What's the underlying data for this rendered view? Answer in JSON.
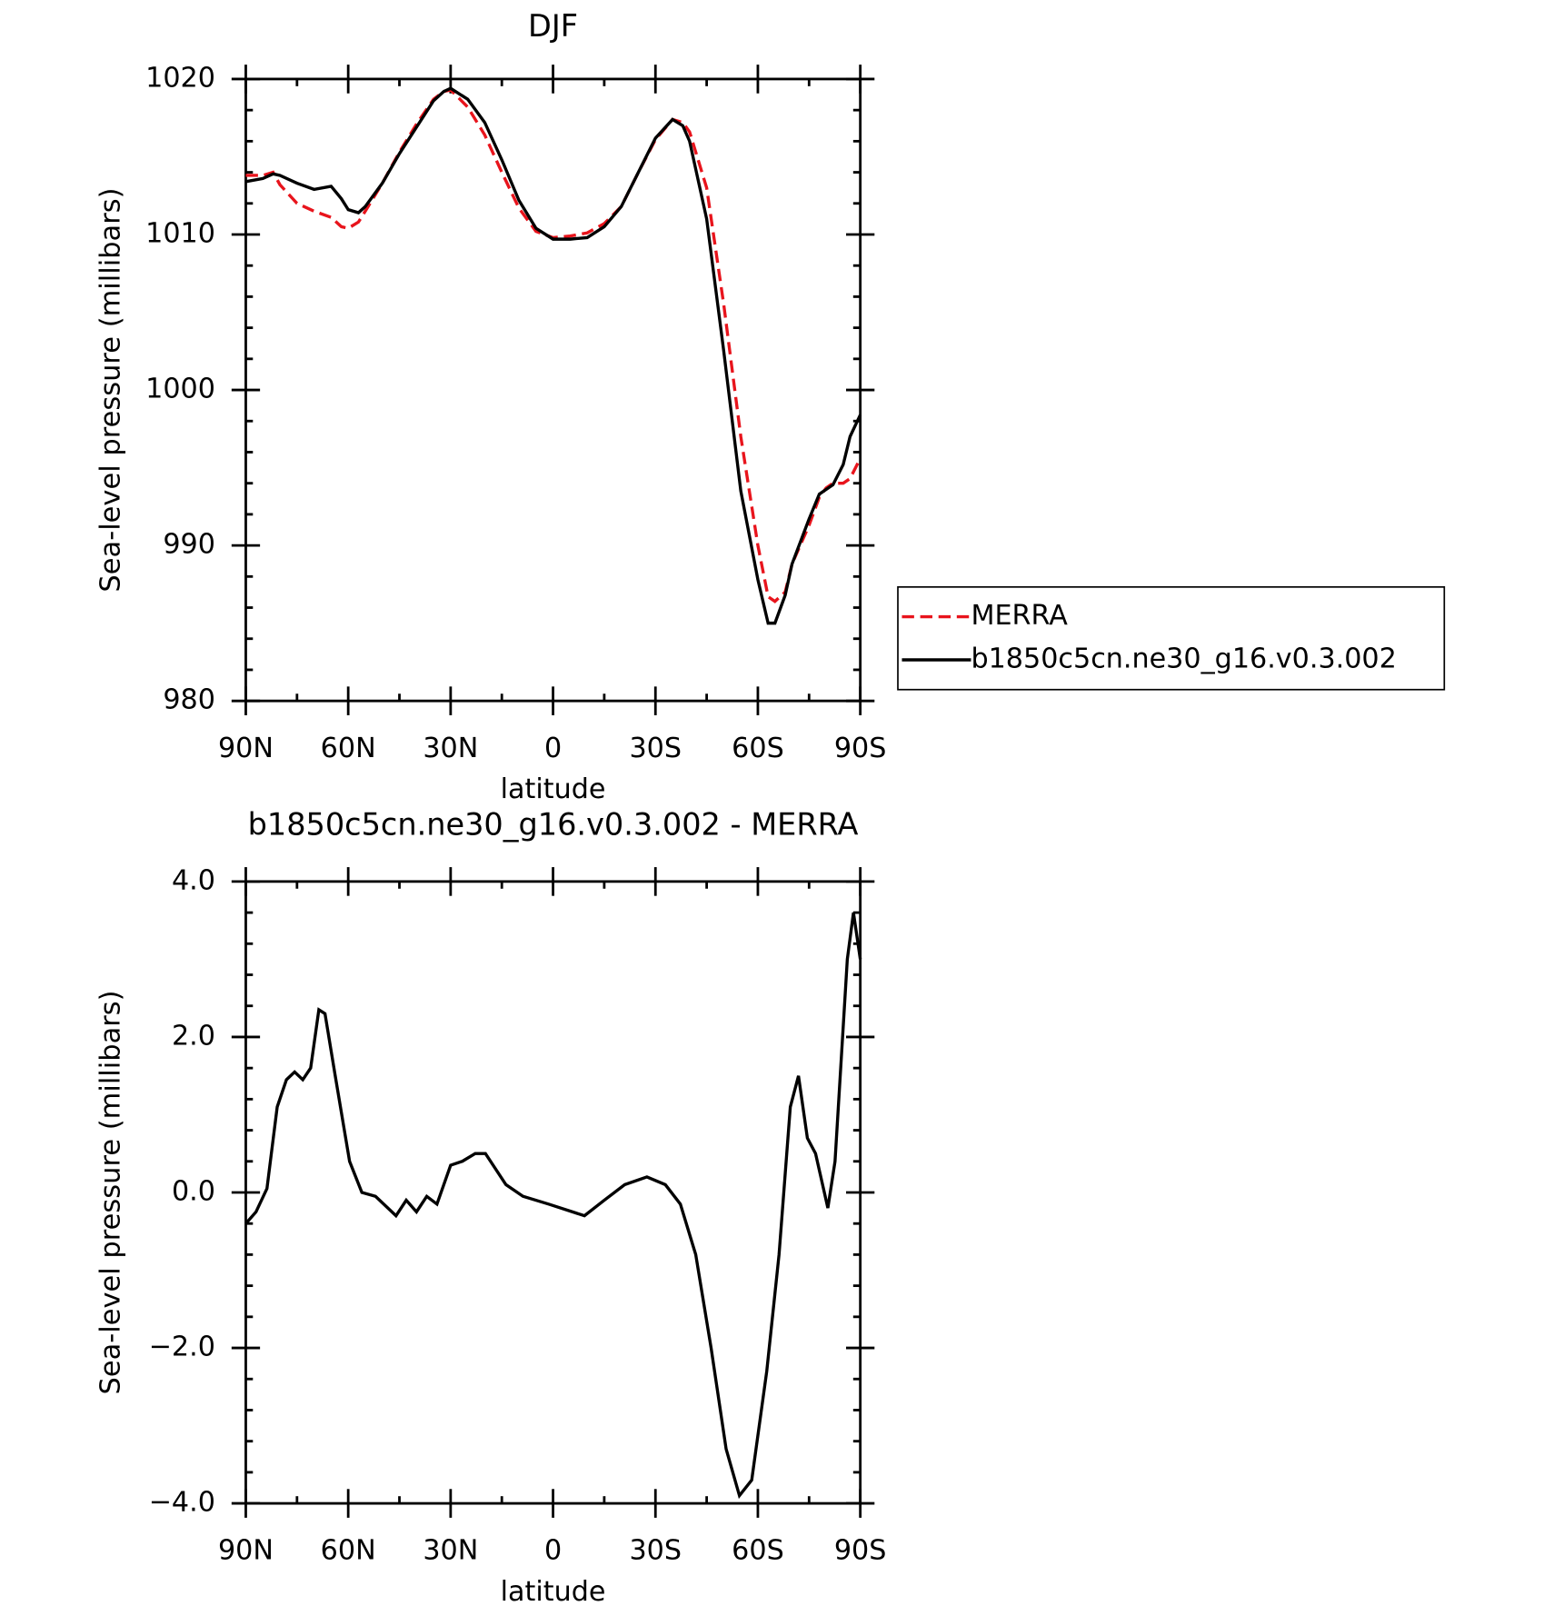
{
  "chart_data": [
    {
      "type": "line",
      "title": "DJF",
      "x_label": "latitude",
      "y_label": "Sea-level pressure (millibars)",
      "xlim": [
        90,
        -90
      ],
      "xticks": [
        {
          "value": 90,
          "label": "90N"
        },
        {
          "value": 60,
          "label": "60N"
        },
        {
          "value": 30,
          "label": "30N"
        },
        0,
        {
          "value": -30,
          "label": "30S"
        },
        {
          "value": -60,
          "label": "60S"
        },
        {
          "value": -90,
          "label": "90S"
        }
      ],
      "ylim": [
        980,
        1020
      ],
      "yticks": [
        980,
        990,
        1000,
        1010,
        1020
      ],
      "legend": "right",
      "x": [
        90,
        85,
        82,
        80,
        75,
        70,
        65,
        62,
        60,
        57,
        55,
        50,
        45,
        40,
        35,
        32,
        30,
        25,
        20,
        15,
        10,
        5,
        0,
        -5,
        -10,
        -15,
        -20,
        -25,
        -30,
        -35,
        -38,
        -40,
        -45,
        -50,
        -55,
        -60,
        -63,
        -65,
        -68,
        -70,
        -75,
        -78,
        -80,
        -82,
        -85,
        -87,
        -90
      ],
      "series": [
        {
          "name": "MERRA",
          "color": "#e8141c",
          "linestyle": "dashed",
          "values": [
            1013.8,
            1013.8,
            1014.0,
            1013.2,
            1012.0,
            1011.5,
            1011.1,
            1010.5,
            1010.4,
            1010.8,
            1011.5,
            1013.3,
            1015.3,
            1017.1,
            1018.7,
            1019.2,
            1019.3,
            1018.2,
            1016.4,
            1014.0,
            1011.7,
            1010.2,
            1009.8,
            1009.9,
            1010.1,
            1010.7,
            1011.8,
            1014.0,
            1016.1,
            1017.4,
            1017.2,
            1016.6,
            1013.0,
            1005.5,
            997.0,
            990.0,
            986.7,
            986.4,
            987.0,
            988.8,
            991.3,
            993.1,
            993.7,
            994.0,
            994.0,
            994.3,
            995.6
          ]
        },
        {
          "name": "b1850c5cn.ne30_g16.v0.3.002",
          "color": "#000000",
          "linestyle": "solid",
          "values": [
            1013.4,
            1013.6,
            1013.9,
            1013.8,
            1013.3,
            1012.9,
            1013.1,
            1012.3,
            1011.6,
            1011.4,
            1011.8,
            1013.3,
            1015.2,
            1016.9,
            1018.6,
            1019.2,
            1019.4,
            1018.7,
            1017.2,
            1014.8,
            1012.2,
            1010.4,
            1009.7,
            1009.7,
            1009.8,
            1010.5,
            1011.8,
            1014.0,
            1016.2,
            1017.4,
            1017.0,
            1016.0,
            1011.0,
            1002.5,
            993.5,
            987.8,
            985.0,
            985.0,
            986.8,
            988.8,
            991.7,
            993.3,
            993.6,
            993.9,
            995.2,
            997.0,
            998.4
          ]
        }
      ]
    },
    {
      "type": "line",
      "title": "b1850c5cn.ne30_g16.v0.3.002 - MERRA",
      "x_label": "latitude",
      "y_label": "Sea-level pressure (millibars)",
      "xlim": [
        90,
        -90
      ],
      "xticks": [
        {
          "value": 90,
          "label": "90N"
        },
        {
          "value": 60,
          "label": "60N"
        },
        {
          "value": 30,
          "label": "30N"
        },
        0,
        {
          "value": -30,
          "label": "30S"
        },
        {
          "value": -60,
          "label": "60S"
        },
        {
          "value": -90,
          "label": "90S"
        }
      ],
      "ylim": [
        -4,
        4
      ],
      "yticks": [
        {
          "value": -4,
          "label": "−4.0"
        },
        {
          "value": -2,
          "label": "−2.0"
        },
        {
          "value": 0,
          "label": "0.0"
        },
        {
          "value": 2,
          "label": "2.0"
        },
        {
          "value": 4,
          "label": "4.0"
        }
      ],
      "x": [
        90,
        87,
        83.8,
        80.8,
        78.1,
        75.7,
        73.3,
        71,
        68.6,
        66.8,
        63.8,
        59.6,
        56,
        52,
        46,
        43,
        40,
        37,
        34,
        30,
        26.6,
        22.8,
        19.8,
        13.8,
        8.8,
        1.3,
        -9.2,
        -15,
        -21,
        -27.5,
        -32.9,
        -37.3,
        -41.8,
        -46.3,
        -50.7,
        -54.6,
        -58.2,
        -62.6,
        -66.2,
        -69.5,
        -71.9,
        -74.5,
        -76.9,
        -80.5,
        -82.6,
        -86.2,
        -88,
        -90
      ],
      "series": [
        {
          "name": "b1850c5cn.ne30_g16.v0.3.002 - MERRA",
          "color": "#000000",
          "linestyle": "solid",
          "values": [
            -0.4,
            -0.25,
            0.05,
            1.1,
            1.45,
            1.55,
            1.45,
            1.6,
            2.35,
            2.3,
            1.5,
            0.4,
            0,
            -0.05,
            -0.3,
            -0.1,
            -0.25,
            -0.05,
            -0.15,
            0.35,
            0.4,
            0.5,
            0.5,
            0.1,
            -0.05,
            -0.15,
            -0.3,
            -0.1,
            0.1,
            0.2,
            0.1,
            -0.15,
            -0.8,
            -2.0,
            -3.3,
            -3.9,
            -3.7,
            -2.3,
            -0.8,
            1.1,
            1.5,
            0.7,
            0.5,
            -0.2,
            0.4,
            3.0,
            3.6,
            3.0
          ]
        }
      ]
    }
  ]
}
